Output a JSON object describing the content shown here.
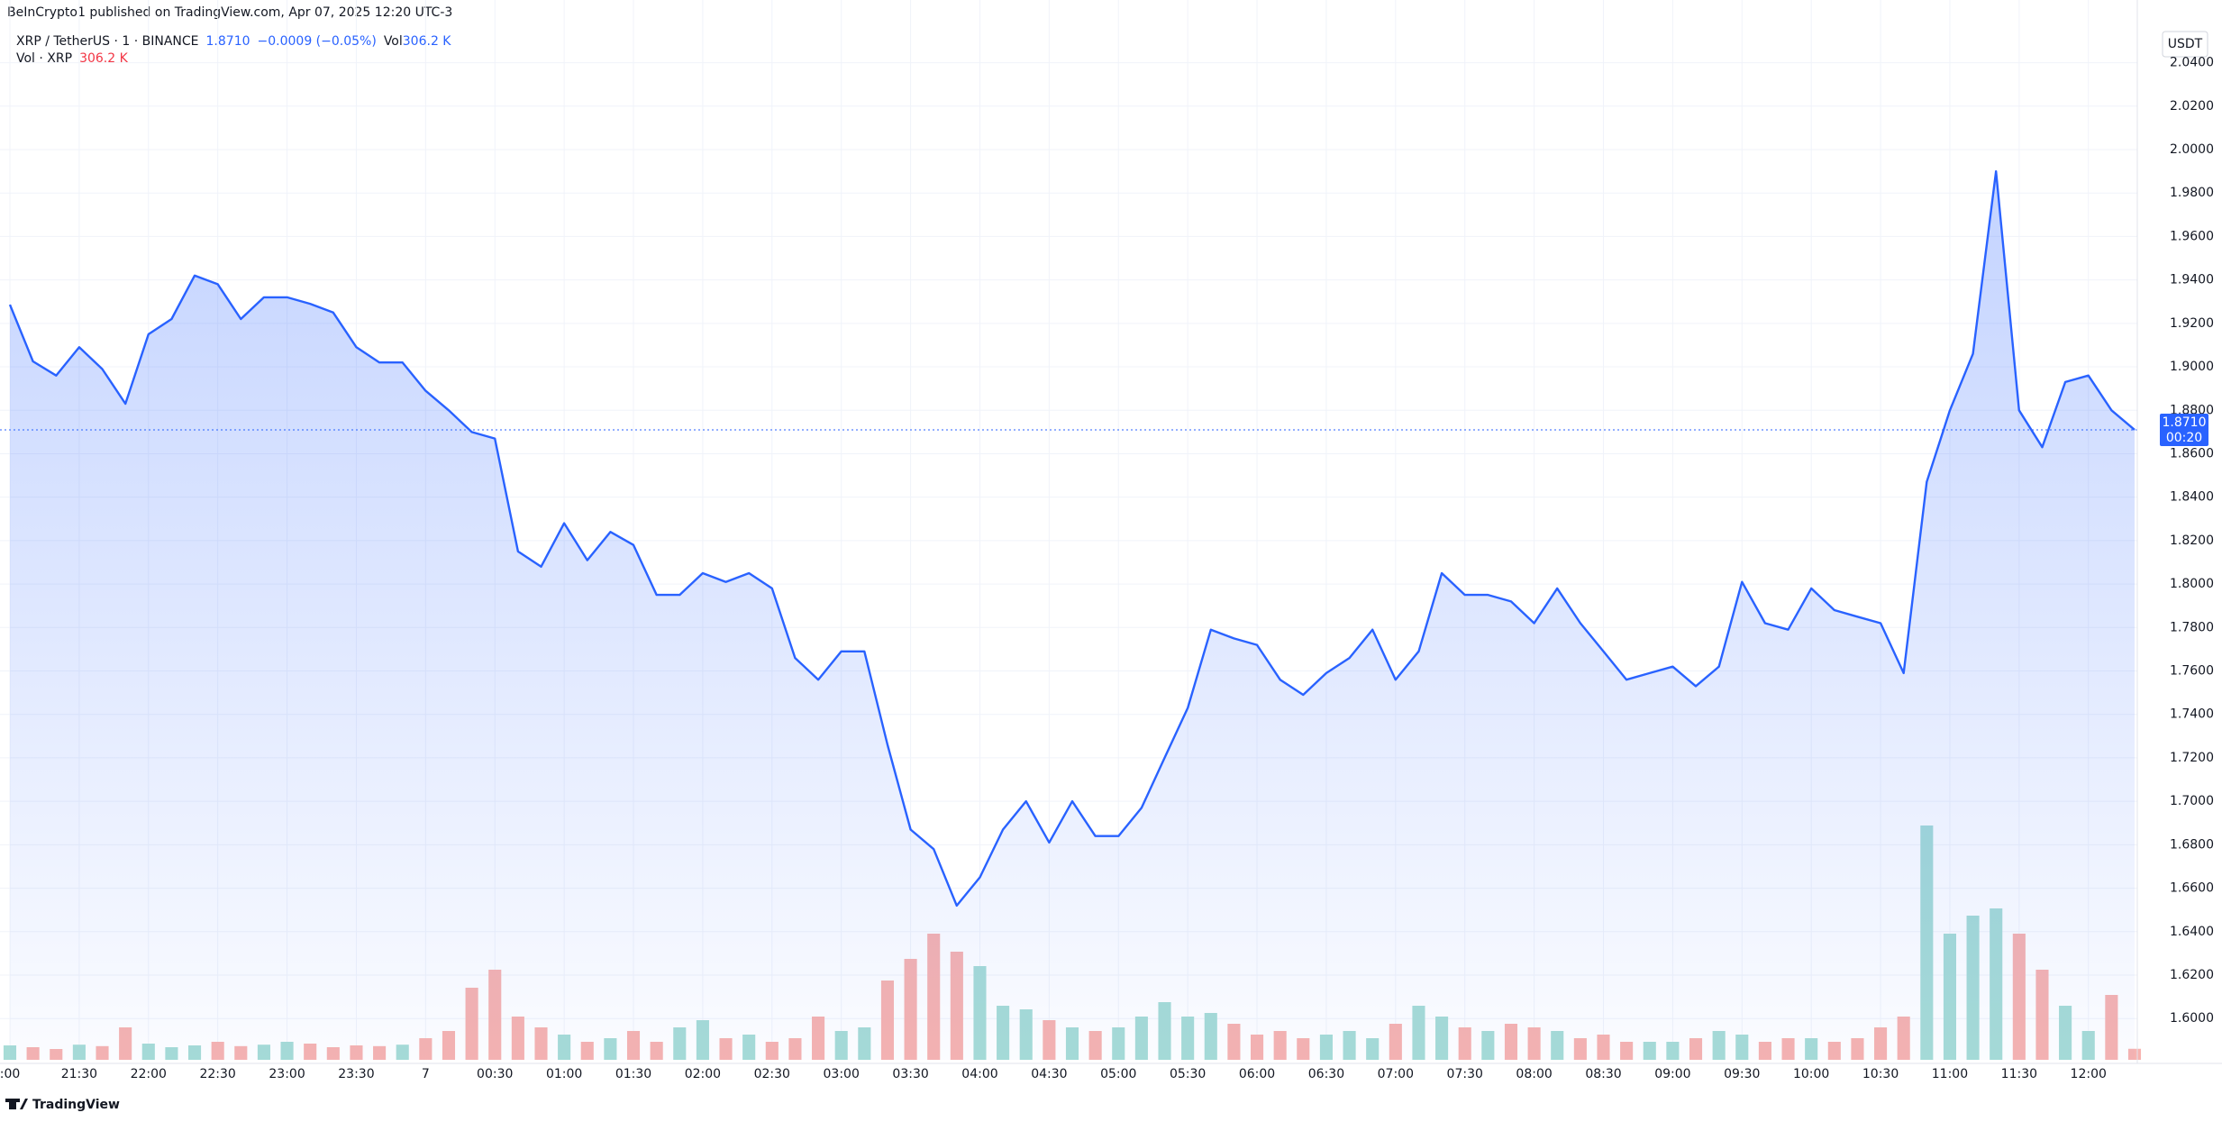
{
  "header": {
    "title": "BeInCrypto1 published on TradingView.com, Apr 07, 2025 12:20 UTC-3"
  },
  "footer": {
    "brand": "TradingView"
  },
  "chart_data": {
    "type": "area",
    "symbol": "XRP / TetherUS · 1 · BINANCE",
    "change": "−0.0009 (−0.05%)",
    "volume_short": "Vol",
    "countdown": "00:20",
    "y_unit": "USDT",
    "grid": true,
    "x": [
      "21:00",
      "21:10",
      "21:20",
      "21:30",
      "21:40",
      "21:50",
      "22:00",
      "22:10",
      "22:20",
      "22:30",
      "22:40",
      "22:50",
      "23:00",
      "23:10",
      "23:20",
      "23:30",
      "23:40",
      "23:50",
      "00:00",
      "00:10",
      "00:20",
      "00:30",
      "00:40",
      "00:50",
      "01:00",
      "01:10",
      "01:20",
      "01:30",
      "01:40",
      "01:50",
      "02:00",
      "02:10",
      "02:20",
      "02:30",
      "02:40",
      "02:50",
      "03:00",
      "03:10",
      "03:20",
      "03:30",
      "03:40",
      "03:50",
      "04:00",
      "04:10",
      "04:20",
      "04:30",
      "04:40",
      "04:50",
      "05:00",
      "05:10",
      "05:20",
      "05:30",
      "05:40",
      "05:50",
      "06:00",
      "06:10",
      "06:20",
      "06:30",
      "06:40",
      "06:50",
      "07:00",
      "07:10",
      "07:20",
      "07:30",
      "07:40",
      "07:50",
      "08:00",
      "08:10",
      "08:20",
      "08:30",
      "08:40",
      "08:50",
      "09:00",
      "09:10",
      "09:20",
      "09:30",
      "09:40",
      "09:50",
      "10:00",
      "10:10",
      "10:20",
      "10:30",
      "10:40",
      "10:50",
      "11:00",
      "11:10",
      "11:20",
      "11:30",
      "11:40",
      "11:50",
      "12:00",
      "12:10",
      "12:20"
    ],
    "series": [
      {
        "color": "#2962ff",
        "values": [
          1.9286,
          1.9025,
          1.896,
          1.909,
          1.899,
          1.883,
          1.915,
          1.922,
          1.942,
          1.938,
          1.922,
          1.932,
          1.932,
          1.929,
          1.925,
          1.909,
          1.902,
          1.902,
          1.889,
          1.88,
          1.87,
          1.867,
          1.815,
          1.808,
          1.828,
          1.811,
          1.824,
          1.818,
          1.795,
          1.795,
          1.805,
          1.801,
          1.805,
          1.798,
          1.766,
          1.756,
          1.769,
          1.769,
          1.726,
          1.687,
          1.678,
          1.652,
          1.665,
          1.687,
          1.7,
          1.681,
          1.7,
          1.684,
          1.684,
          1.697,
          1.72,
          1.743,
          1.779,
          1.775,
          1.772,
          1.756,
          1.749,
          1.759,
          1.766,
          1.779,
          1.756,
          1.769,
          1.805,
          1.795,
          1.795,
          1.792,
          1.782,
          1.798,
          1.782,
          1.769,
          1.756,
          1.759,
          1.762,
          1.753,
          1.762,
          1.801,
          1.782,
          1.779,
          1.798,
          1.788,
          1.785,
          1.782,
          1.759,
          1.847,
          1.88,
          1.906,
          1.99,
          1.88,
          1.863,
          1.893,
          1.896,
          1.88,
          1.871
        ],
        "value_labels": [
          null,
          null,
          null,
          null,
          null,
          null,
          null,
          null,
          null,
          null,
          null,
          null,
          null,
          null,
          null,
          null,
          null,
          null,
          null,
          null,
          null,
          null,
          null,
          null,
          null,
          null,
          null,
          null,
          null,
          null,
          null,
          null,
          null,
          null,
          null,
          null,
          null,
          null,
          null,
          null,
          null,
          null,
          null,
          null,
          null,
          null,
          null,
          null,
          null,
          null,
          null,
          null,
          null,
          null,
          null,
          null,
          null,
          null,
          null,
          null,
          null,
          null,
          null,
          null,
          null,
          null,
          null,
          null,
          null,
          null,
          null,
          null,
          null,
          null,
          null,
          null,
          null,
          null,
          null,
          null,
          null,
          null,
          null,
          null,
          null,
          null,
          null,
          null,
          null,
          null,
          null,
          null,
          "1.8710"
        ]
      },
      {
        "name": "Vol · XRP",
        "type": "volume",
        "up_color": "#a7dcd6",
        "down_color": "#f7b3b0",
        "values": [
          400,
          350,
          300,
          420,
          380,
          900,
          450,
          350,
          400,
          500,
          380,
          420,
          500,
          450,
          350,
          400,
          380,
          420,
          600,
          800,
          2000,
          2500,
          1200,
          900,
          700,
          500,
          600,
          800,
          500,
          900,
          1100,
          600,
          700,
          500,
          600,
          1200,
          800,
          900,
          2200,
          2800,
          3500,
          3000,
          2600,
          1500,
          1400,
          1100,
          900,
          800,
          900,
          1200,
          1600,
          1200,
          1300,
          1000,
          700,
          800,
          600,
          700,
          800,
          600,
          1000,
          1500,
          1200,
          900,
          800,
          1000,
          900,
          800,
          600,
          700,
          500,
          500,
          500,
          600,
          800,
          700,
          500,
          600,
          600,
          500,
          600,
          900,
          1200,
          6500,
          3500,
          4000,
          4200,
          3500,
          2500,
          1500,
          800,
          1800,
          306.2
        ],
        "value_labels": [
          null,
          null,
          null,
          null,
          null,
          null,
          null,
          null,
          null,
          null,
          null,
          null,
          null,
          null,
          null,
          null,
          null,
          null,
          null,
          null,
          null,
          null,
          null,
          null,
          null,
          null,
          null,
          null,
          null,
          null,
          null,
          null,
          null,
          null,
          null,
          null,
          null,
          null,
          null,
          null,
          null,
          null,
          null,
          null,
          null,
          null,
          null,
          null,
          null,
          null,
          null,
          null,
          null,
          null,
          null,
          null,
          null,
          null,
          null,
          null,
          null,
          null,
          null,
          null,
          null,
          null,
          null,
          null,
          null,
          null,
          null,
          null,
          null,
          null,
          null,
          null,
          null,
          null,
          null,
          null,
          null,
          null,
          null,
          null,
          null,
          null,
          null,
          null,
          null,
          null,
          null,
          null,
          "306.2 K"
        ],
        "vlim": [
          0,
          7500
        ]
      }
    ],
    "ylim": [
      1.581,
      2.056
    ],
    "yticks": [
      {
        "value": 1.6,
        "label": "1.6000"
      },
      {
        "value": 1.62,
        "label": "1.6200"
      },
      {
        "value": 1.64,
        "label": "1.6400"
      },
      {
        "value": 1.66,
        "label": "1.6600"
      },
      {
        "value": 1.68,
        "label": "1.6800"
      },
      {
        "value": 1.7,
        "label": "1.7000"
      },
      {
        "value": 1.72,
        "label": "1.7200"
      },
      {
        "value": 1.74,
        "label": "1.7400"
      },
      {
        "value": 1.76,
        "label": "1.7600"
      },
      {
        "value": 1.78,
        "label": "1.7800"
      },
      {
        "value": 1.8,
        "label": "1.8000"
      },
      {
        "value": 1.82,
        "label": "1.8200"
      },
      {
        "value": 1.84,
        "label": "1.8400"
      },
      {
        "value": 1.86,
        "label": "1.8600"
      },
      {
        "value": 1.88,
        "label": "1.8800"
      },
      {
        "value": 1.9,
        "label": "1.9000"
      },
      {
        "value": 1.92,
        "label": "1.9200"
      },
      {
        "value": 1.94,
        "label": "1.9400"
      },
      {
        "value": 1.96,
        "label": "1.9600"
      },
      {
        "value": 1.98,
        "label": "1.9800"
      },
      {
        "value": 2.0,
        "label": "2.0000"
      },
      {
        "value": 2.02,
        "label": "2.0200"
      },
      {
        "value": 2.04,
        "label": "2.0400"
      }
    ],
    "xticks": [
      {
        "value": "21:00",
        "label": ":00"
      },
      "21:30",
      "22:00",
      "22:30",
      "23:00",
      "23:30",
      {
        "value": "00:00",
        "label": "7"
      },
      "00:30",
      "01:00",
      "01:30",
      "02:00",
      "02:30",
      "03:00",
      "03:30",
      "04:00",
      "04:30",
      "05:00",
      "05:30",
      "06:00",
      "06:30",
      "07:00",
      "07:30",
      "08:00",
      "08:30",
      "09:00",
      "09:30",
      "10:00",
      "10:30",
      "11:00",
      "11:30",
      "12:00"
    ]
  }
}
